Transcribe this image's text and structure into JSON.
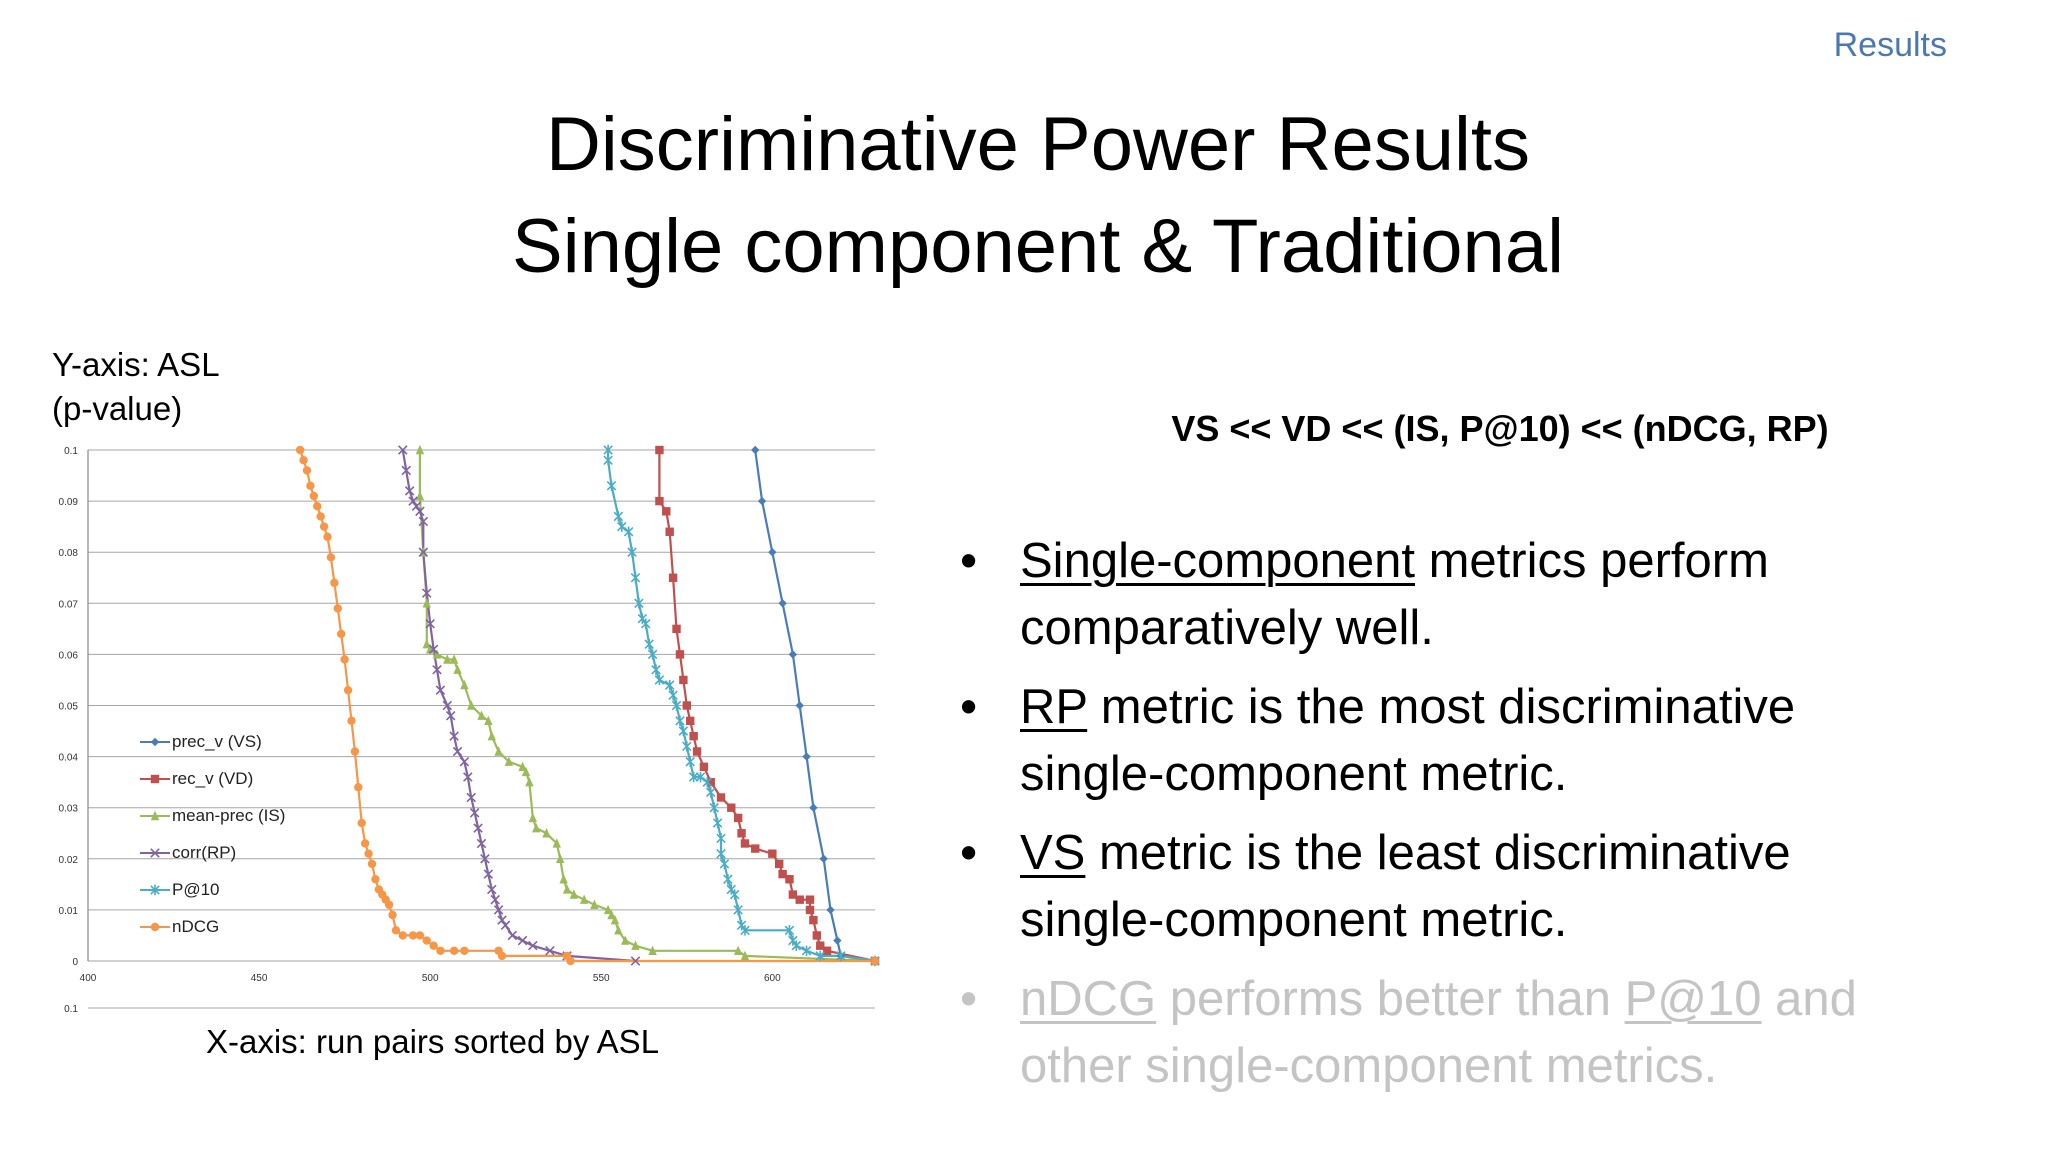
{
  "header": {
    "section": "Results"
  },
  "title": {
    "line1": "Discriminative Power Results",
    "line2": "Single component & Traditional"
  },
  "chart_notes": {
    "y": [
      "Y-axis: ASL",
      "(p-value)"
    ],
    "x": "X-axis: run pairs sorted by ASL"
  },
  "ranking": "VS << VD << (IS, P@10) << (nDCG, RP)",
  "bullets": [
    {
      "u": "Single-component",
      "rest1": " metrics perform",
      "line2": "comparatively well.",
      "faded": false
    },
    {
      "u": "RP",
      "rest1": " metric is the most discriminative",
      "line2": "single-component metric.",
      "faded": false
    },
    {
      "u": "VS",
      "rest1": " metric is the least discriminative",
      "line2": "single-component metric.",
      "faded": false
    },
    {
      "u": "nDCG",
      "mid": " performs better than ",
      "u2": "P@10",
      "rest1": " and",
      "line2": "other single-component metrics.",
      "faded": true
    }
  ],
  "chart_data": {
    "type": "line",
    "xlim": [
      400,
      630
    ],
    "ylim": [
      0,
      0.1
    ],
    "x_ticks": [
      "400",
      "450",
      "500",
      "550",
      "600"
    ],
    "y_ticks": [
      "0",
      "0.01",
      "0.02",
      "0.03",
      "0.04",
      "0.05",
      "0.06",
      "0.07",
      "0.08",
      "0.09",
      "0.1"
    ],
    "extra_tick_label": "0.1",
    "grid": true,
    "legend_position": "left-middle",
    "series": [
      {
        "name": "prec_v (VS)",
        "color": "#4a7db8",
        "marker": "diamond",
        "points": [
          [
            595,
            0.1
          ],
          [
            597,
            0.09
          ],
          [
            600,
            0.08
          ],
          [
            603,
            0.07
          ],
          [
            606,
            0.06
          ],
          [
            608,
            0.05
          ],
          [
            610,
            0.04
          ],
          [
            612,
            0.03
          ],
          [
            615,
            0.02
          ],
          [
            617,
            0.01
          ],
          [
            619,
            0.004
          ],
          [
            620,
            0.001
          ],
          [
            630,
            0
          ]
        ]
      },
      {
        "name": "rec_v (VD)",
        "color": "#c0504d",
        "marker": "square",
        "points": [
          [
            567,
            0.1
          ],
          [
            567,
            0.09
          ],
          [
            569,
            0.088
          ],
          [
            570,
            0.084
          ],
          [
            571,
            0.075
          ],
          [
            572,
            0.065
          ],
          [
            573,
            0.06
          ],
          [
            574,
            0.055
          ],
          [
            575,
            0.05
          ],
          [
            576,
            0.047
          ],
          [
            577,
            0.044
          ],
          [
            578,
            0.041
          ],
          [
            580,
            0.038
          ],
          [
            582,
            0.035
          ],
          [
            585,
            0.032
          ],
          [
            588,
            0.03
          ],
          [
            590,
            0.028
          ],
          [
            591,
            0.025
          ],
          [
            592,
            0.023
          ],
          [
            595,
            0.022
          ],
          [
            600,
            0.021
          ],
          [
            602,
            0.019
          ],
          [
            603,
            0.017
          ],
          [
            605,
            0.016
          ],
          [
            606,
            0.013
          ],
          [
            608,
            0.012
          ],
          [
            611,
            0.012
          ],
          [
            611,
            0.01
          ],
          [
            612,
            0.008
          ],
          [
            613,
            0.005
          ],
          [
            614,
            0.003
          ],
          [
            616,
            0.002
          ],
          [
            630,
            0
          ]
        ]
      },
      {
        "name": "mean-prec (IS)",
        "color": "#9bbb59",
        "marker": "triangle",
        "points": [
          [
            497,
            0.1
          ],
          [
            497,
            0.091
          ],
          [
            498,
            0.08
          ],
          [
            499,
            0.07
          ],
          [
            499,
            0.062
          ],
          [
            500,
            0.061
          ],
          [
            502,
            0.06
          ],
          [
            505,
            0.059
          ],
          [
            507,
            0.059
          ],
          [
            508,
            0.057
          ],
          [
            510,
            0.054
          ],
          [
            512,
            0.05
          ],
          [
            515,
            0.048
          ],
          [
            517,
            0.047
          ],
          [
            518,
            0.044
          ],
          [
            520,
            0.041
          ],
          [
            523,
            0.039
          ],
          [
            527,
            0.038
          ],
          [
            528,
            0.037
          ],
          [
            529,
            0.035
          ],
          [
            530,
            0.028
          ],
          [
            531,
            0.026
          ],
          [
            534,
            0.025
          ],
          [
            537,
            0.023
          ],
          [
            538,
            0.02
          ],
          [
            539,
            0.016
          ],
          [
            540,
            0.014
          ],
          [
            542,
            0.013
          ],
          [
            545,
            0.012
          ],
          [
            548,
            0.011
          ],
          [
            552,
            0.01
          ],
          [
            553,
            0.009
          ],
          [
            554,
            0.008
          ],
          [
            555,
            0.006
          ],
          [
            557,
            0.004
          ],
          [
            560,
            0.003
          ],
          [
            565,
            0.002
          ],
          [
            590,
            0.002
          ],
          [
            592,
            0.001
          ],
          [
            630,
            0
          ]
        ]
      },
      {
        "name": "corr(RP)",
        "color": "#8064a2",
        "marker": "x",
        "points": [
          [
            492,
            0.1
          ],
          [
            493,
            0.096
          ],
          [
            494,
            0.092
          ],
          [
            495,
            0.09
          ],
          [
            496,
            0.089
          ],
          [
            497,
            0.088
          ],
          [
            498,
            0.086
          ],
          [
            498,
            0.08
          ],
          [
            499,
            0.072
          ],
          [
            500,
            0.066
          ],
          [
            501,
            0.061
          ],
          [
            502,
            0.057
          ],
          [
            503,
            0.053
          ],
          [
            505,
            0.05
          ],
          [
            506,
            0.048
          ],
          [
            507,
            0.044
          ],
          [
            508,
            0.041
          ],
          [
            510,
            0.039
          ],
          [
            511,
            0.036
          ],
          [
            512,
            0.032
          ],
          [
            513,
            0.029
          ],
          [
            514,
            0.026
          ],
          [
            515,
            0.023
          ],
          [
            516,
            0.02
          ],
          [
            517,
            0.017
          ],
          [
            518,
            0.014
          ],
          [
            519,
            0.012
          ],
          [
            520,
            0.01
          ],
          [
            521,
            0.008
          ],
          [
            522,
            0.007
          ],
          [
            524,
            0.005
          ],
          [
            527,
            0.004
          ],
          [
            530,
            0.003
          ],
          [
            535,
            0.002
          ],
          [
            540,
            0.001
          ],
          [
            560,
            0
          ]
        ]
      },
      {
        "name": "P@10",
        "color": "#4bacc6",
        "marker": "star",
        "points": [
          [
            552,
            0.1
          ],
          [
            552,
            0.098
          ],
          [
            553,
            0.093
          ],
          [
            555,
            0.087
          ],
          [
            556,
            0.085
          ],
          [
            558,
            0.084
          ],
          [
            559,
            0.08
          ],
          [
            560,
            0.075
          ],
          [
            561,
            0.07
          ],
          [
            562,
            0.067
          ],
          [
            563,
            0.066
          ],
          [
            564,
            0.062
          ],
          [
            565,
            0.06
          ],
          [
            566,
            0.057
          ],
          [
            567,
            0.055
          ],
          [
            570,
            0.054
          ],
          [
            571,
            0.052
          ],
          [
            572,
            0.05
          ],
          [
            573,
            0.047
          ],
          [
            574,
            0.045
          ],
          [
            575,
            0.042
          ],
          [
            576,
            0.039
          ],
          [
            577,
            0.036
          ],
          [
            579,
            0.036
          ],
          [
            581,
            0.035
          ],
          [
            582,
            0.033
          ],
          [
            583,
            0.03
          ],
          [
            584,
            0.027
          ],
          [
            585,
            0.024
          ],
          [
            585,
            0.021
          ],
          [
            586,
            0.019
          ],
          [
            587,
            0.016
          ],
          [
            588,
            0.014
          ],
          [
            589,
            0.013
          ],
          [
            590,
            0.01
          ],
          [
            591,
            0.007
          ],
          [
            592,
            0.006
          ],
          [
            605,
            0.006
          ],
          [
            606,
            0.004
          ],
          [
            607,
            0.003
          ],
          [
            610,
            0.002
          ],
          [
            614,
            0.001
          ],
          [
            620,
            0.001
          ],
          [
            630,
            0
          ]
        ]
      },
      {
        "name": "nDCG",
        "color": "#f79646",
        "marker": "circle",
        "points": [
          [
            462,
            0.1
          ],
          [
            463,
            0.098
          ],
          [
            464,
            0.096
          ],
          [
            465,
            0.093
          ],
          [
            466,
            0.091
          ],
          [
            467,
            0.089
          ],
          [
            468,
            0.087
          ],
          [
            469,
            0.085
          ],
          [
            470,
            0.083
          ],
          [
            471,
            0.079
          ],
          [
            472,
            0.074
          ],
          [
            473,
            0.069
          ],
          [
            474,
            0.064
          ],
          [
            475,
            0.059
          ],
          [
            476,
            0.053
          ],
          [
            477,
            0.047
          ],
          [
            478,
            0.041
          ],
          [
            479,
            0.034
          ],
          [
            480,
            0.027
          ],
          [
            481,
            0.023
          ],
          [
            482,
            0.021
          ],
          [
            483,
            0.019
          ],
          [
            484,
            0.016
          ],
          [
            485,
            0.014
          ],
          [
            486,
            0.013
          ],
          [
            487,
            0.012
          ],
          [
            488,
            0.011
          ],
          [
            489,
            0.009
          ],
          [
            490,
            0.006
          ],
          [
            492,
            0.005
          ],
          [
            495,
            0.005
          ],
          [
            497,
            0.005
          ],
          [
            499,
            0.004
          ],
          [
            501,
            0.003
          ],
          [
            503,
            0.002
          ],
          [
            507,
            0.002
          ],
          [
            510,
            0.002
          ],
          [
            520,
            0.002
          ],
          [
            521,
            0.001
          ],
          [
            540,
            0.001
          ],
          [
            541,
            0
          ],
          [
            630,
            0
          ]
        ]
      }
    ]
  }
}
